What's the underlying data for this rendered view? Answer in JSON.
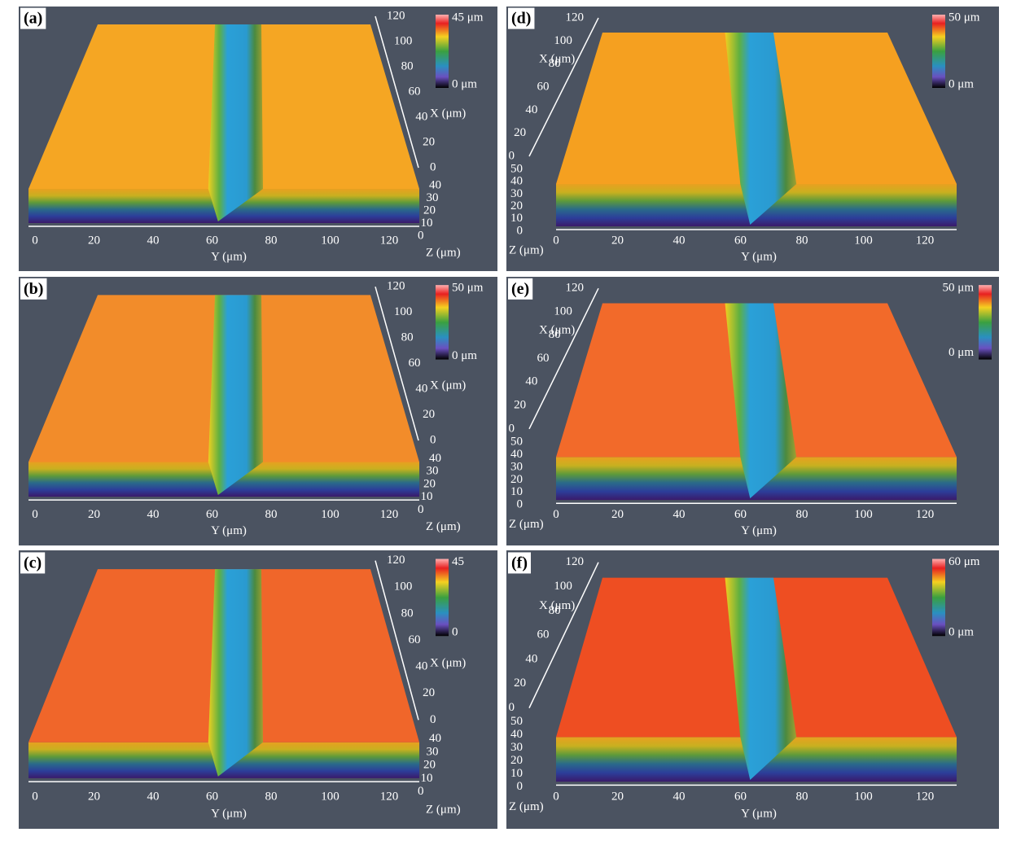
{
  "panels": [
    {
      "label": "(a)",
      "colorbar": [
        "45 μm",
        "0 μm"
      ],
      "x_axis": {
        "title": "X (μm)",
        "ticks": [
          "0",
          "20",
          "40",
          "60",
          "80",
          "100",
          "120"
        ]
      },
      "y_axis": {
        "title": "Y (μm)",
        "ticks": [
          "0",
          "20",
          "40",
          "60",
          "80",
          "100",
          "120"
        ]
      },
      "z_axis": {
        "title": "Z (μm)",
        "ticks": [
          "0",
          "10",
          "20",
          "30",
          "40"
        ]
      }
    },
    {
      "label": "(b)",
      "colorbar": [
        "50 μm",
        "0 μm"
      ],
      "x_axis": {
        "title": "X (μm)",
        "ticks": [
          "0",
          "20",
          "40",
          "60",
          "80",
          "100",
          "120"
        ]
      },
      "y_axis": {
        "title": "Y (μm)",
        "ticks": [
          "0",
          "20",
          "40",
          "60",
          "80",
          "100",
          "120"
        ]
      },
      "z_axis": {
        "title": "Z (μm)",
        "ticks": [
          "0",
          "10",
          "20",
          "30",
          "40"
        ]
      }
    },
    {
      "label": "(c)",
      "colorbar": [
        "45",
        "0"
      ],
      "x_axis": {
        "title": "X (μm)",
        "ticks": [
          "0",
          "20",
          "40",
          "60",
          "80",
          "100",
          "120"
        ]
      },
      "y_axis": {
        "title": "Y (μm)",
        "ticks": [
          "0",
          "20",
          "40",
          "60",
          "80",
          "100",
          "120"
        ]
      },
      "z_axis": {
        "title": "Z (μm)",
        "ticks": [
          "0",
          "10",
          "20",
          "30",
          "40"
        ]
      }
    },
    {
      "label": "(d)",
      "colorbar": [
        "50 μm",
        "0 μm"
      ],
      "x_axis": {
        "title": "X (μm)",
        "ticks": [
          "0",
          "20",
          "40",
          "60",
          "80",
          "100",
          "120"
        ]
      },
      "y_axis": {
        "title": "Y (μm)",
        "ticks": [
          "0",
          "20",
          "40",
          "60",
          "80",
          "100",
          "120"
        ]
      },
      "z_axis": {
        "title": "Z (μm)",
        "ticks": [
          "0",
          "10",
          "20",
          "30",
          "40",
          "50"
        ]
      }
    },
    {
      "label": "(e)",
      "colorbar": [
        "50 μm",
        "0 μm"
      ],
      "x_axis": {
        "title": "X (μm)",
        "ticks": [
          "0",
          "20",
          "40",
          "60",
          "80",
          "100",
          "120"
        ]
      },
      "y_axis": {
        "title": "Y (μm)",
        "ticks": [
          "0",
          "20",
          "40",
          "60",
          "80",
          "100",
          "120"
        ]
      },
      "z_axis": {
        "title": "Z (μm)",
        "ticks": [
          "0",
          "10",
          "20",
          "30",
          "40",
          "50"
        ]
      }
    },
    {
      "label": "(f)",
      "colorbar": [
        "60 μm",
        "0 μm"
      ],
      "x_axis": {
        "title": "X (μm)",
        "ticks": [
          "0",
          "20",
          "40",
          "60",
          "80",
          "100",
          "120"
        ]
      },
      "y_axis": {
        "title": "Y (μm)",
        "ticks": [
          "0",
          "20",
          "40",
          "60",
          "80",
          "100",
          "120"
        ]
      },
      "z_axis": {
        "title": "Z (μm)",
        "ticks": [
          "0",
          "10",
          "20",
          "30",
          "40",
          "50"
        ]
      }
    }
  ]
}
